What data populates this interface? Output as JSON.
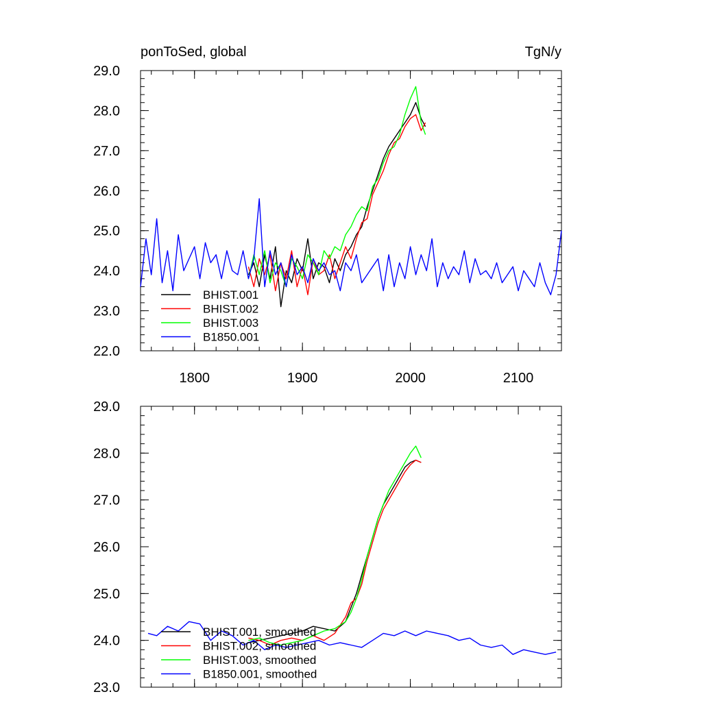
{
  "chart_data": [
    {
      "type": "line",
      "title_left": "ponToSed, global",
      "title_right": "TgN/y",
      "xlim": [
        1750,
        2140
      ],
      "ylim": [
        22.0,
        29.0
      ],
      "xticks": [
        1800,
        1900,
        2000,
        2100
      ],
      "xtick_labels": [
        "1800",
        "1900",
        "2000",
        "2100"
      ],
      "yticks": [
        22.0,
        23.0,
        24.0,
        25.0,
        26.0,
        27.0,
        28.0,
        29.0
      ],
      "ytick_labels": [
        "22.0",
        "23.0",
        "24.0",
        "25.0",
        "26.0",
        "27.0",
        "28.0",
        "29.0"
      ],
      "grid": false,
      "legend_position": "lower-left",
      "series": [
        {
          "name": "BHIST.001",
          "color": "#000000",
          "x": [
            1850,
            1855,
            1860,
            1865,
            1870,
            1875,
            1880,
            1885,
            1890,
            1895,
            1900,
            1905,
            1910,
            1915,
            1920,
            1925,
            1930,
            1935,
            1940,
            1945,
            1950,
            1955,
            1960,
            1965,
            1970,
            1975,
            1980,
            1985,
            1990,
            1995,
            2000,
            2005,
            2010,
            2014
          ],
          "y": [
            23.9,
            24.2,
            23.6,
            24.4,
            23.8,
            24.6,
            23.1,
            24.0,
            23.7,
            24.3,
            24.0,
            24.8,
            23.8,
            24.2,
            24.1,
            23.7,
            24.3,
            24.0,
            24.4,
            24.6,
            24.9,
            25.1,
            25.6,
            26.0,
            26.4,
            26.8,
            27.1,
            27.3,
            27.5,
            27.7,
            27.9,
            28.2,
            27.8,
            27.6
          ]
        },
        {
          "name": "BHIST.002",
          "color": "#ff0000",
          "x": [
            1850,
            1855,
            1860,
            1865,
            1870,
            1875,
            1880,
            1885,
            1890,
            1895,
            1900,
            1905,
            1910,
            1915,
            1920,
            1925,
            1930,
            1935,
            1940,
            1945,
            1950,
            1955,
            1960,
            1965,
            1970,
            1975,
            1980,
            1985,
            1990,
            1995,
            2000,
            2005,
            2010,
            2014
          ],
          "y": [
            24.1,
            23.6,
            24.3,
            23.9,
            24.4,
            23.5,
            24.2,
            23.8,
            24.5,
            23.6,
            24.1,
            23.4,
            24.3,
            23.9,
            24.0,
            24.4,
            23.8,
            24.2,
            24.6,
            24.3,
            24.8,
            25.2,
            25.3,
            25.9,
            26.2,
            26.5,
            26.9,
            27.2,
            27.3,
            27.6,
            27.8,
            27.9,
            27.5,
            27.7
          ]
        },
        {
          "name": "BHIST.003",
          "color": "#00ff00",
          "x": [
            1850,
            1855,
            1860,
            1865,
            1870,
            1875,
            1880,
            1885,
            1890,
            1895,
            1900,
            1905,
            1910,
            1915,
            1920,
            1925,
            1930,
            1935,
            1940,
            1945,
            1950,
            1955,
            1960,
            1965,
            1970,
            1975,
            1980,
            1985,
            1990,
            1995,
            2000,
            2005,
            2010,
            2014
          ],
          "y": [
            23.8,
            24.4,
            23.9,
            24.5,
            23.7,
            24.2,
            24.0,
            23.6,
            24.3,
            24.1,
            23.8,
            24.4,
            24.2,
            23.9,
            24.5,
            24.3,
            24.6,
            24.5,
            24.9,
            25.1,
            25.4,
            25.6,
            25.5,
            26.1,
            26.3,
            26.7,
            27.0,
            27.1,
            27.4,
            27.9,
            28.3,
            28.6,
            27.7,
            27.4
          ]
        },
        {
          "name": "B1850.001",
          "color": "#0000ff",
          "x": [
            1750,
            1755,
            1760,
            1765,
            1770,
            1775,
            1780,
            1785,
            1790,
            1795,
            1800,
            1805,
            1810,
            1815,
            1820,
            1825,
            1830,
            1835,
            1840,
            1845,
            1850,
            1855,
            1860,
            1865,
            1870,
            1875,
            1880,
            1885,
            1890,
            1895,
            1900,
            1905,
            1910,
            1915,
            1920,
            1925,
            1930,
            1935,
            1940,
            1945,
            1950,
            1955,
            1960,
            1965,
            1970,
            1975,
            1980,
            1985,
            1990,
            1995,
            2000,
            2005,
            2010,
            2015,
            2020,
            2025,
            2030,
            2035,
            2040,
            2045,
            2050,
            2055,
            2060,
            2065,
            2070,
            2075,
            2080,
            2085,
            2090,
            2095,
            2100,
            2105,
            2110,
            2115,
            2120,
            2125,
            2130,
            2135,
            2140
          ],
          "y": [
            23.6,
            24.8,
            23.9,
            25.3,
            23.7,
            24.5,
            23.5,
            24.9,
            24.0,
            24.3,
            24.6,
            23.8,
            24.7,
            24.2,
            24.4,
            23.8,
            24.5,
            24.0,
            23.9,
            24.5,
            23.8,
            24.3,
            25.8,
            23.6,
            24.5,
            23.9,
            24.2,
            23.6,
            24.4,
            23.9,
            24.1,
            23.7,
            24.3,
            24.0,
            24.2,
            23.9,
            24.0,
            23.5,
            24.2,
            24.0,
            24.4,
            23.7,
            23.9,
            24.1,
            24.3,
            23.5,
            24.4,
            23.6,
            24.2,
            23.8,
            24.6,
            23.9,
            24.4,
            24.0,
            24.8,
            23.6,
            24.2,
            23.8,
            24.1,
            23.9,
            24.5,
            23.7,
            24.3,
            23.9,
            24.0,
            23.8,
            24.2,
            23.7,
            23.9,
            24.1,
            23.5,
            24.0,
            23.8,
            23.6,
            24.2,
            23.7,
            23.4,
            23.9,
            25.0
          ]
        }
      ]
    },
    {
      "type": "line",
      "xlim": [
        1750,
        2140
      ],
      "ylim": [
        23.0,
        29.0
      ],
      "xticks": [
        1800,
        1900,
        2000,
        2100
      ],
      "yticks": [
        23.0,
        24.0,
        25.0,
        26.0,
        27.0,
        28.0,
        29.0
      ],
      "ytick_labels": [
        "23.0",
        "24.0",
        "25.0",
        "26.0",
        "27.0",
        "28.0",
        "29.0"
      ],
      "grid": false,
      "legend_position": "lower-left",
      "series": [
        {
          "name": "BHIST.001, smoothed",
          "color": "#000000",
          "x": [
            1850,
            1860,
            1870,
            1880,
            1890,
            1900,
            1910,
            1920,
            1930,
            1940,
            1945,
            1950,
            1955,
            1960,
            1965,
            1970,
            1975,
            1980,
            1985,
            1990,
            1995,
            2000,
            2005,
            2010
          ],
          "y": [
            23.95,
            24.0,
            24.05,
            24.1,
            24.15,
            24.2,
            24.3,
            24.25,
            24.2,
            24.4,
            24.7,
            25.0,
            25.4,
            25.8,
            26.2,
            26.6,
            26.9,
            27.1,
            27.3,
            27.5,
            27.7,
            27.8,
            27.85,
            27.8
          ]
        },
        {
          "name": "BHIST.002, smoothed",
          "color": "#ff0000",
          "x": [
            1850,
            1860,
            1870,
            1880,
            1890,
            1900,
            1910,
            1920,
            1930,
            1940,
            1945,
            1950,
            1955,
            1960,
            1965,
            1970,
            1975,
            1980,
            1985,
            1990,
            1995,
            2000,
            2005,
            2010
          ],
          "y": [
            24.05,
            24.0,
            23.9,
            24.0,
            24.05,
            24.0,
            24.1,
            24.0,
            24.15,
            24.5,
            24.8,
            24.9,
            25.2,
            25.7,
            26.1,
            26.5,
            26.8,
            27.0,
            27.2,
            27.4,
            27.6,
            27.75,
            27.85,
            27.8
          ]
        },
        {
          "name": "BHIST.003, smoothed",
          "color": "#00ff00",
          "x": [
            1850,
            1860,
            1870,
            1880,
            1890,
            1900,
            1910,
            1920,
            1930,
            1940,
            1945,
            1950,
            1955,
            1960,
            1965,
            1970,
            1975,
            1980,
            1985,
            1990,
            1995,
            2000,
            2005,
            2010
          ],
          "y": [
            24.0,
            24.05,
            23.95,
            23.9,
            23.95,
            24.0,
            24.1,
            24.2,
            24.25,
            24.4,
            24.6,
            24.9,
            25.3,
            25.8,
            26.2,
            26.6,
            26.9,
            27.2,
            27.4,
            27.6,
            27.8,
            28.0,
            28.15,
            27.9
          ]
        },
        {
          "name": "B1850.001, smoothed",
          "color": "#0000ff",
          "x": [
            1757,
            1765,
            1775,
            1785,
            1795,
            1805,
            1815,
            1825,
            1835,
            1845,
            1855,
            1865,
            1875,
            1885,
            1895,
            1905,
            1915,
            1925,
            1935,
            1945,
            1955,
            1965,
            1975,
            1985,
            1995,
            2005,
            2015,
            2025,
            2035,
            2045,
            2055,
            2065,
            2075,
            2085,
            2095,
            2105,
            2115,
            2125,
            2135
          ],
          "y": [
            24.15,
            24.1,
            24.3,
            24.2,
            24.4,
            24.35,
            24.0,
            24.2,
            24.1,
            23.9,
            24.0,
            23.8,
            23.9,
            23.85,
            23.9,
            23.95,
            24.0,
            23.9,
            23.95,
            23.9,
            23.85,
            24.0,
            24.15,
            24.1,
            24.2,
            24.1,
            24.2,
            24.15,
            24.1,
            24.0,
            24.05,
            23.9,
            23.85,
            23.9,
            23.7,
            23.8,
            23.75,
            23.7,
            23.75
          ]
        }
      ]
    }
  ]
}
